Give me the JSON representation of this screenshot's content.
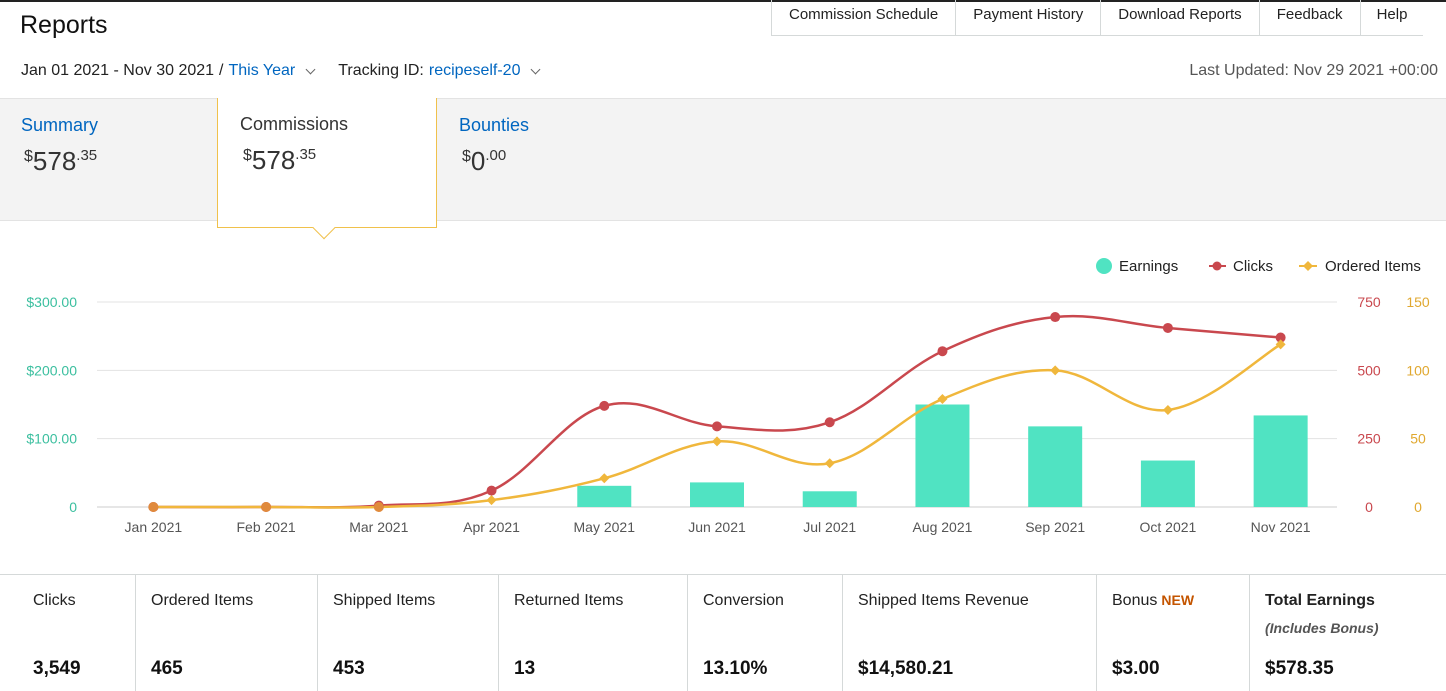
{
  "header": {
    "title": "Reports",
    "nav": [
      "Commission Schedule",
      "Payment History",
      "Download Reports",
      "Feedback",
      "Help"
    ]
  },
  "filters": {
    "date_range": "Jan 01 2021 - Nov 30 2021",
    "separator": "/",
    "period": "This Year",
    "tracking_label": "Tracking ID:",
    "tracking_id": "recipeself-20",
    "last_updated": "Last Updated: Nov 29 2021 +00:00"
  },
  "tabs": {
    "summary": {
      "label": "Summary",
      "currency": "$",
      "whole": "578",
      "cents": ".35"
    },
    "commissions": {
      "label": "Commissions",
      "currency": "$",
      "whole": "578",
      "cents": ".35"
    },
    "bounties": {
      "label": "Bounties",
      "currency": "$",
      "whole": "0",
      "cents": ".00"
    }
  },
  "colors": {
    "earnings": "#50e3c2",
    "clicks": "#c9484e",
    "ordered": "#f0b73c",
    "link": "#0066c0",
    "new_badge": "#c45500"
  },
  "chart_data": {
    "type": "bar",
    "categories": [
      "Jan 2021",
      "Feb 2021",
      "Mar 2021",
      "Apr 2021",
      "May 2021",
      "Jun 2021",
      "Jul 2021",
      "Aug 2021",
      "Sep 2021",
      "Oct 2021",
      "Nov 2021"
    ],
    "legend_position": "top-right",
    "grid": true,
    "series": [
      {
        "name": "Earnings",
        "type": "bar",
        "axis": "left",
        "values": [
          0,
          0,
          0,
          0,
          31,
          36,
          23,
          150,
          118,
          68,
          134
        ]
      },
      {
        "name": "Clicks",
        "type": "line",
        "axis": "right1",
        "values": [
          0,
          0,
          5,
          60,
          370,
          295,
          310,
          570,
          695,
          655,
          620
        ]
      },
      {
        "name": "Ordered Items",
        "type": "line",
        "axis": "right2",
        "values": [
          0,
          0,
          0,
          5,
          21,
          48,
          32,
          79,
          100,
          71,
          119
        ]
      }
    ],
    "axes": {
      "left": {
        "ticks": [
          "$300.00",
          "$200.00",
          "$100.00",
          "0"
        ],
        "ylim": [
          0,
          300
        ]
      },
      "right1": {
        "ticks": [
          "750",
          "500",
          "250",
          "0"
        ],
        "ylim": [
          0,
          750
        ]
      },
      "right2": {
        "ticks": [
          "150",
          "100",
          "50",
          "0"
        ],
        "ylim": [
          0,
          150
        ]
      }
    }
  },
  "stats": [
    {
      "label": "Clicks",
      "value": "3,549"
    },
    {
      "label": "Ordered Items",
      "value": "465"
    },
    {
      "label": "Shipped Items",
      "value": "453"
    },
    {
      "label": "Returned Items",
      "value": "13"
    },
    {
      "label": "Conversion",
      "value": "13.10%"
    },
    {
      "label": "Shipped Items Revenue",
      "value": "$14,580.21"
    },
    {
      "label": "Bonus",
      "badge": "NEW",
      "value": "$3.00"
    },
    {
      "label": "Total Earnings",
      "sub": "(Includes Bonus)",
      "value": "$578.35"
    }
  ]
}
